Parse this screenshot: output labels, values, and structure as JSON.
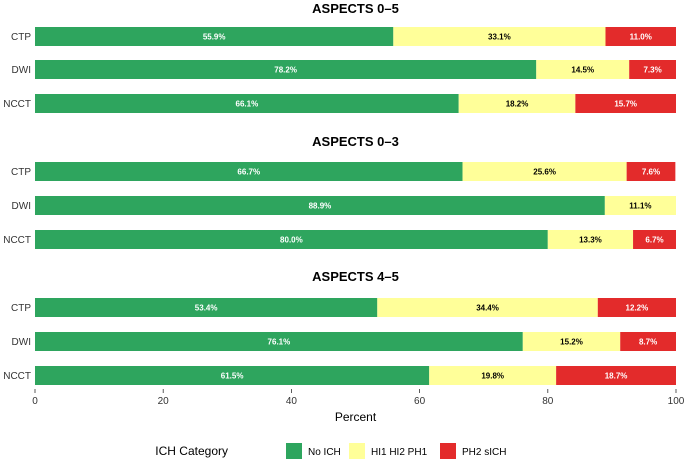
{
  "chart_data": {
    "type": "bar",
    "orientation": "horizontal",
    "stacked": true,
    "xlabel": "Percent",
    "xlim": [
      0,
      100
    ],
    "xticks": [
      0,
      20,
      40,
      60,
      80,
      100
    ],
    "categories": [
      "CTP",
      "DWI",
      "NCCT"
    ],
    "legend_title": "ICH Category",
    "legend_position": "bottom",
    "series_names": [
      "No ICH",
      "HI1 HI2 PH1",
      "PH2 sICH"
    ],
    "series_colors": [
      "#2ea55e",
      "#ffff99",
      "#e32b2b"
    ],
    "label_colors": [
      "#ffffff",
      "#000000",
      "#ffffff"
    ],
    "panels": [
      {
        "title": "ASPECTS 0–5",
        "bars": [
          {
            "category": "CTP",
            "values": [
              55.9,
              33.1,
              11.0
            ],
            "labels": [
              "55.9%",
              "33.1%",
              "11.0%"
            ]
          },
          {
            "category": "DWI",
            "values": [
              78.2,
              14.5,
              7.3
            ],
            "labels": [
              "78.2%",
              "14.5%",
              "7.3%"
            ]
          },
          {
            "category": "NCCT",
            "values": [
              66.1,
              18.2,
              15.7
            ],
            "labels": [
              "66.1%",
              "18.2%",
              "15.7%"
            ]
          }
        ]
      },
      {
        "title": "ASPECTS 0–3",
        "bars": [
          {
            "category": "CTP",
            "values": [
              66.7,
              25.6,
              7.6
            ],
            "labels": [
              "66.7%",
              "25.6%",
              "7.6%"
            ]
          },
          {
            "category": "DWI",
            "values": [
              88.9,
              11.1,
              0
            ],
            "labels": [
              "88.9%",
              "11.1%",
              ""
            ]
          },
          {
            "category": "NCCT",
            "values": [
              80.0,
              13.3,
              6.7
            ],
            "labels": [
              "80.0%",
              "13.3%",
              "6.7%"
            ]
          }
        ]
      },
      {
        "title": "ASPECTS 4–5",
        "bars": [
          {
            "category": "CTP",
            "values": [
              53.4,
              34.4,
              12.2
            ],
            "labels": [
              "53.4%",
              "34.4%",
              "12.2%"
            ]
          },
          {
            "category": "DWI",
            "values": [
              76.1,
              15.2,
              8.7
            ],
            "labels": [
              "76.1%",
              "15.2%",
              "8.7%"
            ]
          },
          {
            "category": "NCCT",
            "values": [
              61.5,
              19.8,
              18.7
            ],
            "labels": [
              "61.5%",
              "19.8%",
              "18.7%"
            ]
          }
        ]
      }
    ]
  }
}
